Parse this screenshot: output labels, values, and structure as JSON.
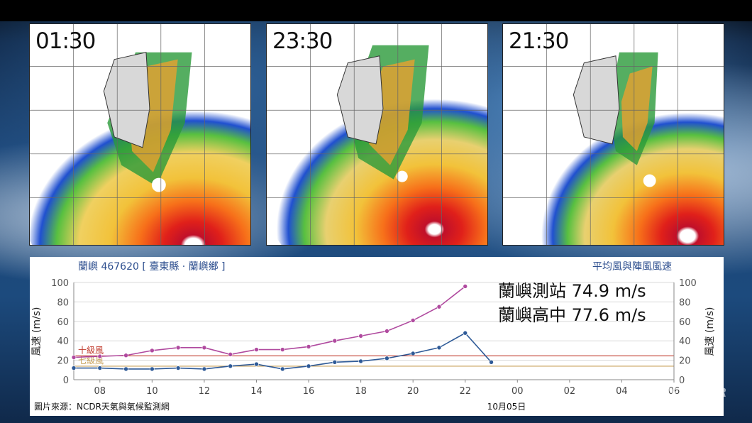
{
  "radar_panels": [
    {
      "time": "01:30"
    },
    {
      "time": "23:30"
    },
    {
      "time": "21:30"
    }
  ],
  "chart_data": {
    "type": "line",
    "station_title": "蘭嶼 467620 [ 臺東縣 · 蘭嶼鄉 ]",
    "chart_title": "平均風與陣風風速",
    "ylabel_left": "風速 (m/s)",
    "ylabel_right": "風速 (m/s)",
    "ylim": [
      0,
      100
    ],
    "y_ticks": [
      0,
      20,
      40,
      60,
      80,
      100
    ],
    "x_ticks": [
      "08",
      "10",
      "12",
      "14",
      "16",
      "18",
      "20",
      "22",
      "00",
      "02",
      "04",
      "06"
    ],
    "date_label": "10月05日",
    "source": "圖片來源：NCDR天氣與氣候監測網",
    "x_hours": [
      7,
      8,
      9,
      10,
      11,
      12,
      13,
      14,
      15,
      16,
      17,
      18,
      19,
      20,
      21,
      22,
      23
    ],
    "series": [
      {
        "name": "陣風",
        "color": "#b04a9f",
        "values": [
          23,
          24,
          25,
          30,
          33,
          33,
          26,
          31,
          31,
          34,
          40,
          45,
          50,
          61,
          75,
          96,
          null
        ]
      },
      {
        "name": "平均風",
        "color": "#2e5a97",
        "values": [
          12,
          12,
          11,
          11,
          12,
          11,
          14,
          16,
          11,
          14,
          18,
          19,
          22,
          27,
          33,
          48,
          18
        ]
      }
    ],
    "thresholds": [
      {
        "label": "十級風",
        "value": 24.5,
        "color": "#c0392b"
      },
      {
        "label": "七級風",
        "value": 13.9,
        "color": "#c8a15a"
      }
    ],
    "annotations": [
      "蘭嶼測站 74.9 m/s",
      "蘭嶼高中 77.6 m/s"
    ]
  },
  "watermark": "WEATHER"
}
